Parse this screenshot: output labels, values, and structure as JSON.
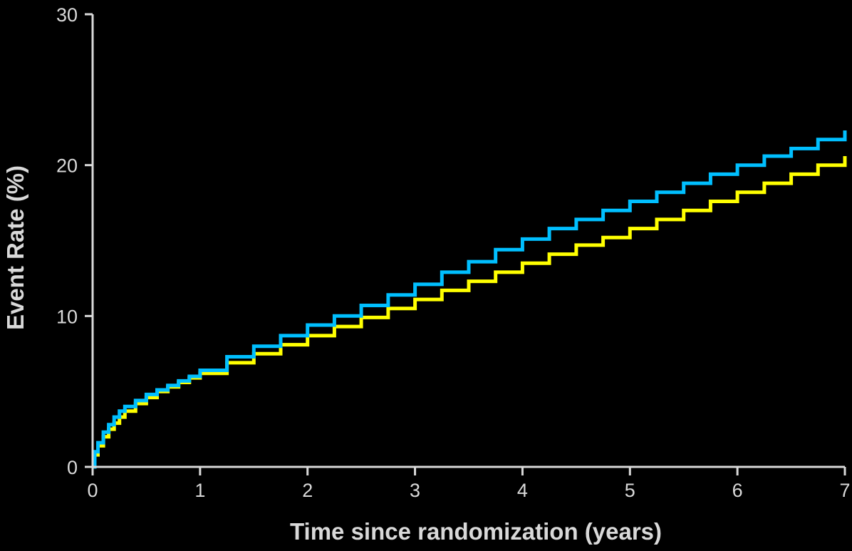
{
  "chart_data": {
    "type": "line",
    "step": true,
    "xlabel": "Time since randomization (years)",
    "ylabel": "Event Rate (%)",
    "xlim": [
      0,
      7
    ],
    "ylim": [
      0,
      30
    ],
    "xticks": [
      0,
      1,
      2,
      3,
      4,
      5,
      6,
      7
    ],
    "yticks": [
      0,
      10,
      20,
      30
    ],
    "grid": false,
    "legend": "none",
    "colors": {
      "background": "#000000",
      "axis": "#d9d9d9"
    },
    "series": [
      {
        "color": "#ffff00",
        "x": [
          0,
          0.02,
          0.05,
          0.1,
          0.15,
          0.2,
          0.25,
          0.3,
          0.4,
          0.5,
          0.6,
          0.7,
          0.8,
          0.9,
          1.0,
          1.25,
          1.5,
          1.75,
          2.0,
          2.25,
          2.5,
          2.75,
          3.0,
          3.25,
          3.5,
          3.75,
          4.0,
          4.25,
          4.5,
          4.75,
          5.0,
          5.25,
          5.5,
          5.75,
          6.0,
          6.25,
          6.5,
          6.75,
          7.0
        ],
        "y": [
          0,
          0.8,
          1.4,
          2.0,
          2.5,
          2.9,
          3.3,
          3.7,
          4.2,
          4.6,
          5.0,
          5.3,
          5.6,
          5.9,
          6.2,
          6.9,
          7.5,
          8.1,
          8.7,
          9.3,
          9.9,
          10.5,
          11.1,
          11.7,
          12.3,
          12.9,
          13.5,
          14.1,
          14.7,
          15.2,
          15.8,
          16.4,
          17.0,
          17.6,
          18.2,
          18.8,
          19.4,
          20.0,
          20.6
        ]
      },
      {
        "color": "#00bfff",
        "x": [
          0,
          0.02,
          0.05,
          0.1,
          0.15,
          0.2,
          0.25,
          0.3,
          0.4,
          0.5,
          0.6,
          0.7,
          0.8,
          0.9,
          1.0,
          1.25,
          1.5,
          1.75,
          2.0,
          2.25,
          2.5,
          2.75,
          3.0,
          3.25,
          3.5,
          3.75,
          4.0,
          4.25,
          4.5,
          4.75,
          5.0,
          5.25,
          5.5,
          5.75,
          6.0,
          6.25,
          6.5,
          6.75,
          7.0
        ],
        "y": [
          0,
          1.0,
          1.6,
          2.3,
          2.8,
          3.3,
          3.7,
          4.0,
          4.4,
          4.8,
          5.1,
          5.4,
          5.7,
          6.0,
          6.4,
          7.3,
          8.0,
          8.7,
          9.4,
          10.0,
          10.7,
          11.4,
          12.1,
          12.9,
          13.6,
          14.4,
          15.1,
          15.8,
          16.4,
          17.0,
          17.6,
          18.2,
          18.8,
          19.4,
          20.0,
          20.6,
          21.1,
          21.7,
          22.3
        ]
      }
    ]
  }
}
